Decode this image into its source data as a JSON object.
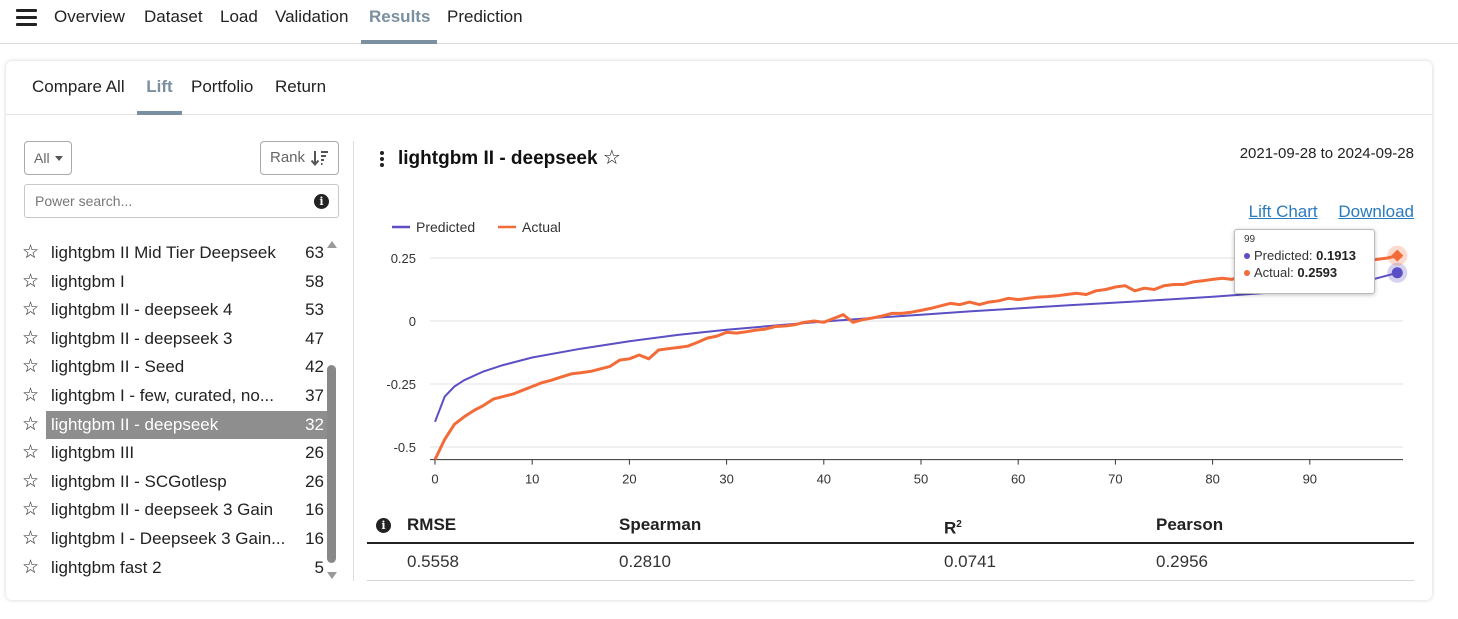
{
  "nav": {
    "tabs": [
      {
        "label": "Overview"
      },
      {
        "label": "Dataset"
      },
      {
        "label": "Load"
      },
      {
        "label": "Validation"
      },
      {
        "label": "Results",
        "active": true
      },
      {
        "label": "Prediction"
      }
    ]
  },
  "subtabs": [
    {
      "label": "Compare All"
    },
    {
      "label": "Lift",
      "active": true
    },
    {
      "label": "Portfolio"
    },
    {
      "label": "Return"
    }
  ],
  "filter": {
    "label": "All",
    "sort_label": "Rank"
  },
  "search": {
    "placeholder": "Power search..."
  },
  "models": [
    {
      "name": "lightgbm II Mid Tier Deepseek",
      "rank": "63"
    },
    {
      "name": "lightgbm I",
      "rank": "58"
    },
    {
      "name": "lightgbm II - deepseek 4",
      "rank": "53"
    },
    {
      "name": "lightgbm II - deepseek 3",
      "rank": "47"
    },
    {
      "name": "lightgbm II - Seed",
      "rank": "42"
    },
    {
      "name": "lightgbm I - few, curated, no...",
      "rank": "37"
    },
    {
      "name": "lightgbm II - deepseek",
      "rank": "32",
      "selected": true
    },
    {
      "name": "lightgbm III",
      "rank": "26"
    },
    {
      "name": "lightgbm II - SCGotlesp",
      "rank": "26"
    },
    {
      "name": "lightgbm II - deepseek 3 Gain",
      "rank": "16"
    },
    {
      "name": "lightgbm I - Deepseek 3 Gain...",
      "rank": "16"
    },
    {
      "name": "lightgbm fast 2",
      "rank": "5"
    }
  ],
  "detail": {
    "title": "lightgbm II - deepseek",
    "date_range": "2021-09-28 to 2024-09-28",
    "links": {
      "lift_chart": "Lift Chart",
      "download": "Download"
    }
  },
  "colors": {
    "predicted": "#5b4fc4",
    "actual": "#f26b38",
    "accent": "#7a8fa0"
  },
  "tooltip": {
    "x": "99",
    "predicted_label": "Predicted:",
    "predicted_value": "0.1913",
    "actual_label": "Actual:",
    "actual_value": "0.2593"
  },
  "metrics": {
    "headers": {
      "rmse": "RMSE",
      "spearman": "Spearman",
      "r2": "R",
      "r2_sup": "2",
      "pearson": "Pearson"
    },
    "values": {
      "rmse": "0.5558",
      "spearman": "0.2810",
      "r2": "0.0741",
      "pearson": "0.2956"
    }
  },
  "chart_data": {
    "type": "line",
    "title": "",
    "xlabel": "",
    "ylabel": "",
    "xlim": [
      0,
      100
    ],
    "ylim": [
      -0.55,
      0.27
    ],
    "xticks": [
      "0",
      "10",
      "20",
      "30",
      "40",
      "50",
      "60",
      "70",
      "80",
      "90"
    ],
    "yticks": [
      "0.25",
      "0",
      "-0.25",
      "-0.5"
    ],
    "legend": "top-left",
    "grid": true,
    "series": [
      {
        "name": "Predicted",
        "color": "#5b4fc4",
        "x": [
          0,
          1,
          2,
          3,
          5,
          7,
          10,
          15,
          20,
          25,
          30,
          35,
          40,
          45,
          50,
          55,
          60,
          65,
          70,
          75,
          80,
          85,
          90,
          95,
          99
        ],
        "y": [
          -0.4,
          -0.3,
          -0.26,
          -0.235,
          -0.2,
          -0.175,
          -0.145,
          -0.11,
          -0.08,
          -0.055,
          -0.035,
          -0.018,
          -0.002,
          0.012,
          0.025,
          0.038,
          0.05,
          0.062,
          0.073,
          0.084,
          0.096,
          0.11,
          0.125,
          0.15,
          0.1913
        ]
      },
      {
        "name": "Actual",
        "color": "#f26b38",
        "x": [
          0,
          1,
          2,
          3,
          4,
          5,
          6,
          7,
          8,
          9,
          10,
          11,
          12,
          13,
          14,
          15,
          16,
          17,
          18,
          19,
          20,
          21,
          22,
          23,
          24,
          25,
          26,
          27,
          28,
          29,
          30,
          31,
          32,
          33,
          34,
          35,
          36,
          37,
          38,
          39,
          40,
          41,
          42,
          43,
          44,
          45,
          46,
          47,
          48,
          49,
          50,
          51,
          52,
          53,
          54,
          55,
          56,
          57,
          58,
          59,
          60,
          61,
          62,
          63,
          64,
          65,
          66,
          67,
          68,
          69,
          70,
          71,
          72,
          73,
          74,
          75,
          76,
          77,
          78,
          79,
          80,
          81,
          82,
          83,
          84,
          85,
          86,
          87,
          88,
          89,
          90,
          91,
          92,
          93,
          94,
          95,
          96,
          97,
          98,
          99
        ],
        "y": [
          -0.55,
          -0.47,
          -0.41,
          -0.38,
          -0.355,
          -0.335,
          -0.31,
          -0.3,
          -0.29,
          -0.275,
          -0.26,
          -0.245,
          -0.235,
          -0.222,
          -0.21,
          -0.205,
          -0.2,
          -0.19,
          -0.18,
          -0.155,
          -0.15,
          -0.135,
          -0.15,
          -0.115,
          -0.11,
          -0.105,
          -0.1,
          -0.085,
          -0.068,
          -0.06,
          -0.045,
          -0.048,
          -0.043,
          -0.036,
          -0.032,
          -0.022,
          -0.02,
          -0.015,
          -0.005,
          0.0,
          -0.005,
          0.01,
          0.025,
          -0.005,
          0.005,
          0.012,
          0.02,
          0.03,
          0.03,
          0.035,
          0.042,
          0.05,
          0.06,
          0.07,
          0.065,
          0.075,
          0.065,
          0.075,
          0.08,
          0.09,
          0.085,
          0.09,
          0.095,
          0.097,
          0.1,
          0.105,
          0.11,
          0.105,
          0.12,
          0.125,
          0.135,
          0.14,
          0.12,
          0.13,
          0.125,
          0.14,
          0.145,
          0.145,
          0.155,
          0.16,
          0.165,
          0.17,
          0.165,
          0.18,
          0.17,
          0.18,
          0.175,
          0.18,
          0.2,
          0.205,
          0.21,
          0.215,
          0.22,
          0.225,
          0.23,
          0.235,
          0.24,
          0.245,
          0.25,
          0.2593
        ]
      }
    ]
  }
}
